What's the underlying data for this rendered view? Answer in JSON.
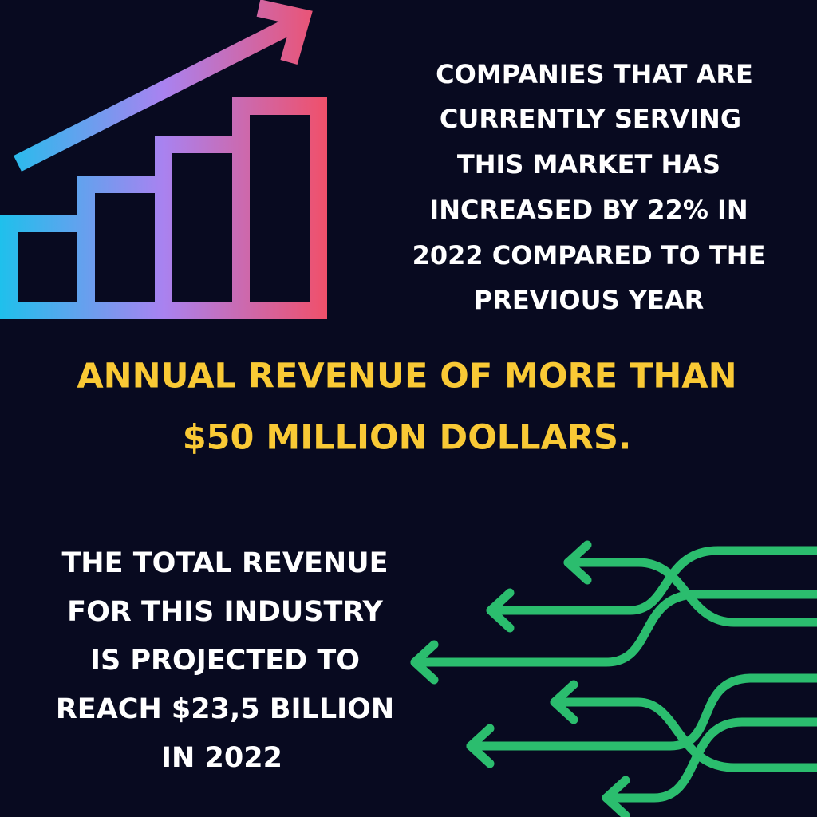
{
  "top_text": {
    "lines": [
      "COMPANIES THAT ARE",
      "CURRENTLY SERVING",
      "THIS MARKET HAS",
      "INCREASED BY 22% IN",
      "2022 COMPARED TO THE",
      "PREVIOUS YEAR"
    ]
  },
  "headline": {
    "lines": [
      "ANNUAL REVENUE OF MORE THAN",
      "$50 MILLION DOLLARS."
    ]
  },
  "bottom_text": {
    "lines": [
      "THE TOTAL REVENUE",
      "FOR THIS INDUSTRY",
      "IS PROJECTED TO",
      "REACH $23,5 BILLION",
      "IN 2022"
    ]
  }
}
